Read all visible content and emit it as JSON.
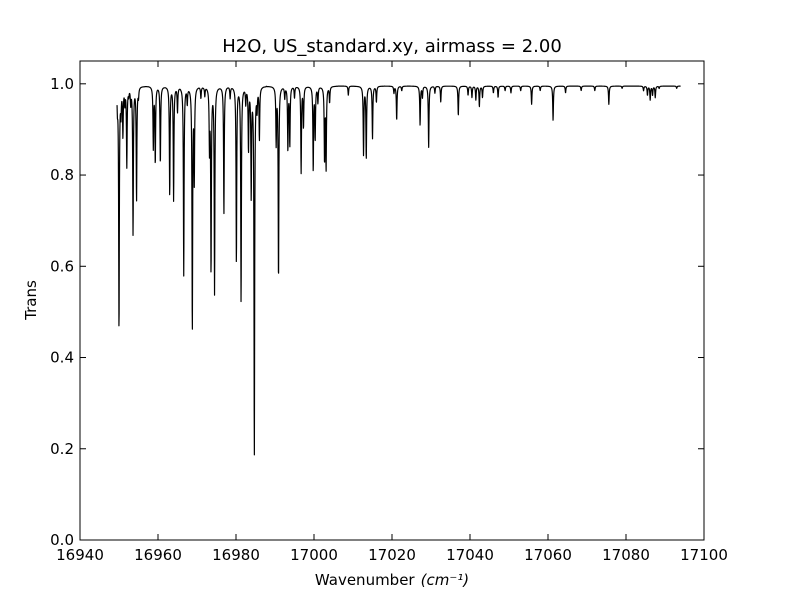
{
  "chart_data": {
    "type": "line",
    "title": "H2O, US_standard.xy, airmass = 2.00",
    "xlabel": "Wavenumber",
    "xlabel_unit": "(cm⁻¹)",
    "ylabel": "Trans",
    "xlim": [
      16940,
      17100
    ],
    "ylim": [
      0.0,
      1.05
    ],
    "xticks": [
      16940,
      16960,
      16980,
      17000,
      17020,
      17040,
      17060,
      17080,
      17100
    ],
    "xtick_labels": [
      "16940",
      "16960",
      "16980",
      "17000",
      "17020",
      "17040",
      "17060",
      "17080",
      "17100"
    ],
    "yticks": [
      0.0,
      0.2,
      0.4,
      0.6,
      0.8,
      1.0
    ],
    "ytick_labels": [
      "0.0",
      "0.2",
      "0.4",
      "0.6",
      "0.8",
      "1.0"
    ],
    "grid": false,
    "line_color": "#000000",
    "series": [
      {
        "x_range": [
          16949.5,
          17094
        ],
        "baseline": 0.995,
        "absorption_lines": [
          [
            16949.6,
            0.955
          ],
          [
            16950.0,
            0.455
          ],
          [
            16950.5,
            0.94
          ],
          [
            16951.0,
            0.89
          ],
          [
            16951.5,
            0.96
          ],
          [
            16952.0,
            0.82
          ],
          [
            16952.5,
            0.98
          ],
          [
            16953.0,
            0.96
          ],
          [
            16953.6,
            0.67
          ],
          [
            16954.5,
            0.745
          ],
          [
            16955.0,
            0.975
          ],
          [
            16958.8,
            0.86
          ],
          [
            16959.3,
            0.825
          ],
          [
            16960.6,
            0.825
          ],
          [
            16963.0,
            0.755
          ],
          [
            16964.0,
            0.745
          ],
          [
            16965.0,
            0.94
          ],
          [
            16966.6,
            0.58
          ],
          [
            16967.5,
            0.96
          ],
          [
            16968.8,
            0.455
          ],
          [
            16969.3,
            0.79
          ],
          [
            16971.0,
            0.97
          ],
          [
            16972.0,
            0.975
          ],
          [
            16973.2,
            0.86
          ],
          [
            16973.6,
            0.585
          ],
          [
            16974.5,
            0.54
          ],
          [
            16976.9,
            0.715
          ],
          [
            16978.5,
            0.97
          ],
          [
            16980.1,
            0.605
          ],
          [
            16981.3,
            0.52
          ],
          [
            16982.5,
            0.96
          ],
          [
            16983.2,
            0.855
          ],
          [
            16983.9,
            0.755
          ],
          [
            16984.7,
            0.18
          ],
          [
            16985.4,
            0.95
          ],
          [
            16986.0,
            0.88
          ],
          [
            16990.3,
            0.87
          ],
          [
            16990.9,
            0.565
          ],
          [
            16992.5,
            0.97
          ],
          [
            16993.3,
            0.855
          ],
          [
            16993.8,
            0.865
          ],
          [
            16995.0,
            0.97
          ],
          [
            16996.7,
            0.805
          ],
          [
            16997.3,
            0.905
          ],
          [
            16999.8,
            0.81
          ],
          [
            17000.3,
            0.88
          ],
          [
            17001.0,
            0.96
          ],
          [
            17002.7,
            0.83
          ],
          [
            17003.1,
            0.815
          ],
          [
            17004.0,
            0.96
          ],
          [
            17008.8,
            0.975
          ],
          [
            17012.7,
            0.845
          ],
          [
            17013.4,
            0.835
          ],
          [
            17015.0,
            0.88
          ],
          [
            17016.0,
            0.96
          ],
          [
            17020.5,
            0.98
          ],
          [
            17021.2,
            0.92
          ],
          [
            17022.5,
            0.985
          ],
          [
            17027.2,
            0.91
          ],
          [
            17027.8,
            0.97
          ],
          [
            17029.4,
            0.86
          ],
          [
            17031.0,
            0.98
          ],
          [
            17032.5,
            0.96
          ],
          [
            17037.0,
            0.93
          ],
          [
            17039.5,
            0.975
          ],
          [
            17040.5,
            0.97
          ],
          [
            17041.5,
            0.965
          ],
          [
            17042.4,
            0.95
          ],
          [
            17043.2,
            0.97
          ],
          [
            17046.0,
            0.98
          ],
          [
            17047.2,
            0.97
          ],
          [
            17049.0,
            0.985
          ],
          [
            17050.5,
            0.98
          ],
          [
            17053.0,
            0.985
          ],
          [
            17055.8,
            0.955
          ],
          [
            17058.0,
            0.985
          ],
          [
            17061.3,
            0.92
          ],
          [
            17064.5,
            0.98
          ],
          [
            17068.5,
            0.985
          ],
          [
            17072.0,
            0.985
          ],
          [
            17075.6,
            0.955
          ],
          [
            17079.0,
            0.99
          ],
          [
            17084.5,
            0.985
          ],
          [
            17085.5,
            0.975
          ],
          [
            17086.2,
            0.965
          ],
          [
            17086.8,
            0.975
          ],
          [
            17087.5,
            0.97
          ],
          [
            17088.5,
            0.99
          ],
          [
            17093.0,
            0.99
          ]
        ]
      }
    ]
  }
}
